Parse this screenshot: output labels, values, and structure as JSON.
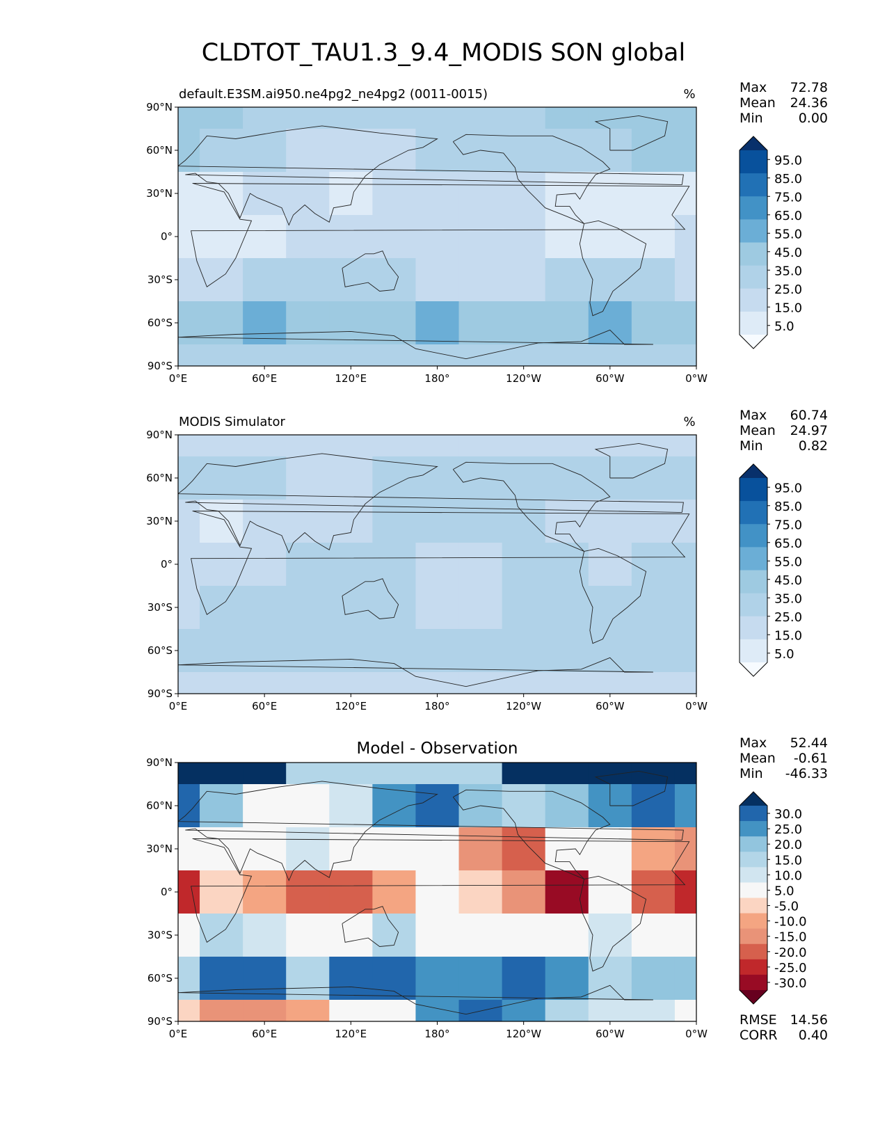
{
  "figure_title": "CLDTOT_TAU1.3_9.4_MODIS SON global",
  "colors": {
    "seq": [
      "#f7fbff",
      "#deebf7",
      "#c6dbef",
      "#b0d2e8",
      "#9ecae1",
      "#6baed6",
      "#4292c6",
      "#2171b5",
      "#08519c",
      "#08306b"
    ],
    "div": [
      "#67001f",
      "#980b24",
      "#c0282b",
      "#d6604d",
      "#e99378",
      "#f4a582",
      "#fbd5c2",
      "#f7f7f7",
      "#d1e5f0",
      "#b3d6e8",
      "#92c5de",
      "#4393c3",
      "#2166ac",
      "#053061"
    ],
    "land": "#222222",
    "ocean_default": "#dfeaf6"
  },
  "chart_data": [
    {
      "type": "heatmap",
      "panel": "test",
      "title_left": "default.E3SM.ai950.ne4pg2_ne4pg2 (0011-0015)",
      "title_center": "",
      "units": "%",
      "stats": {
        "Max": "72.78",
        "Mean": "24.36",
        "Min": "0.00"
      },
      "colorbar_labels": [
        "95.0",
        "85.0",
        "75.0",
        "65.0",
        "55.0",
        "45.0",
        "35.0",
        "25.0",
        "15.0",
        "5.0"
      ],
      "xticks": [
        "0°E",
        "60°E",
        "120°E",
        "180°",
        "120°W",
        "60°W",
        "0°W"
      ],
      "yticks": [
        "90°N",
        "60°N",
        "30°N",
        "0°",
        "30°S",
        "60°S",
        "90°S"
      ],
      "xlim": [
        0,
        360
      ],
      "ylim": [
        -90,
        90
      ],
      "field_rows": [
        {
          "lat": 90,
          "values": [
            45,
            45,
            30,
            30,
            30,
            30,
            30,
            30,
            30,
            45,
            45,
            45,
            45
          ]
        },
        {
          "lat": 60,
          "values": [
            45,
            35,
            30,
            25,
            25,
            25,
            30,
            30,
            30,
            30,
            35,
            40,
            40
          ]
        },
        {
          "lat": 30,
          "values": [
            10,
            15,
            20,
            20,
            15,
            20,
            20,
            20,
            20,
            15,
            15,
            15,
            15
          ]
        },
        {
          "lat": 0,
          "values": [
            15,
            15,
            15,
            20,
            20,
            20,
            20,
            20,
            20,
            15,
            15,
            15,
            20
          ]
        },
        {
          "lat": -30,
          "values": [
            20,
            25,
            30,
            30,
            30,
            30,
            25,
            25,
            25,
            30,
            30,
            30,
            25
          ]
        },
        {
          "lat": -60,
          "values": [
            40,
            45,
            50,
            45,
            40,
            45,
            50,
            45,
            40,
            45,
            50,
            45,
            40
          ]
        },
        {
          "lat": -90,
          "values": [
            35,
            35,
            30,
            30,
            30,
            30,
            30,
            30,
            30,
            30,
            30,
            35,
            35
          ]
        }
      ]
    },
    {
      "type": "heatmap",
      "panel": "reference",
      "title_left": "MODIS Simulator",
      "title_center": "",
      "units": "%",
      "stats": {
        "Max": "60.74",
        "Mean": "24.97",
        "Min": "0.82"
      },
      "colorbar_labels": [
        "95.0",
        "85.0",
        "75.0",
        "65.0",
        "55.0",
        "45.0",
        "35.0",
        "25.0",
        "15.0",
        "5.0"
      ],
      "xticks": [
        "0°E",
        "60°E",
        "120°E",
        "180°",
        "120°W",
        "60°W",
        "0°W"
      ],
      "yticks": [
        "90°N",
        "60°N",
        "30°N",
        "0°",
        "30°S",
        "60°S",
        "90°S"
      ],
      "xlim": [
        0,
        360
      ],
      "ylim": [
        -90,
        90
      ],
      "field_rows": [
        {
          "lat": 90,
          "values": [
            20,
            25,
            25,
            25,
            25,
            25,
            25,
            20,
            20,
            20,
            20,
            20,
            20
          ]
        },
        {
          "lat": 60,
          "values": [
            30,
            30,
            30,
            25,
            25,
            30,
            30,
            30,
            30,
            30,
            30,
            30,
            30
          ]
        },
        {
          "lat": 30,
          "values": [
            20,
            15,
            20,
            25,
            25,
            30,
            30,
            30,
            30,
            25,
            25,
            25,
            25
          ]
        },
        {
          "lat": 0,
          "values": [
            25,
            25,
            25,
            30,
            35,
            30,
            20,
            20,
            30,
            30,
            25,
            30,
            30
          ]
        },
        {
          "lat": -30,
          "values": [
            25,
            30,
            30,
            30,
            30,
            30,
            25,
            25,
            30,
            30,
            30,
            30,
            30
          ]
        },
        {
          "lat": -60,
          "values": [
            35,
            35,
            35,
            35,
            35,
            35,
            35,
            35,
            35,
            35,
            35,
            35,
            35
          ]
        },
        {
          "lat": -90,
          "values": [
            20,
            20,
            20,
            20,
            20,
            20,
            20,
            20,
            20,
            20,
            20,
            20,
            20
          ]
        }
      ]
    },
    {
      "type": "heatmap",
      "panel": "diff",
      "title_left": "",
      "title_center": "Model - Observation",
      "units": "",
      "stats": {
        "Max": "52.44",
        "Mean": "-0.61",
        "Min": "-46.33"
      },
      "extra_stats": {
        "RMSE": "14.56",
        "CORR": "0.40"
      },
      "colorbar_labels": [
        "30.0",
        "25.0",
        "20.0",
        "15.0",
        "10.0",
        "5.0",
        "-5.0",
        "-10.0",
        "-15.0",
        "-20.0",
        "-25.0",
        "-30.0"
      ],
      "xticks": [
        "0°E",
        "60°E",
        "120°E",
        "180°",
        "120°W",
        "60°W",
        "0°W"
      ],
      "yticks": [
        "90°N",
        "60°N",
        "30°N",
        "0°",
        "30°S",
        "60°S",
        "90°S"
      ],
      "xlim": [
        0,
        360
      ],
      "ylim": [
        -90,
        90
      ],
      "field_rows": [
        {
          "lat": 90,
          "values": [
            35,
            35,
            30,
            10,
            10,
            10,
            10,
            10,
            35,
            35,
            35,
            35,
            35
          ]
        },
        {
          "lat": 60,
          "values": [
            25,
            15,
            0,
            0,
            5,
            20,
            25,
            15,
            10,
            15,
            20,
            25,
            20
          ]
        },
        {
          "lat": 30,
          "values": [
            -5,
            0,
            0,
            5,
            0,
            0,
            0,
            -20,
            -25,
            0,
            0,
            -15,
            -20
          ]
        },
        {
          "lat": 0,
          "values": [
            -30,
            -10,
            -15,
            -25,
            -25,
            -15,
            0,
            -10,
            -20,
            -35,
            -5,
            -25,
            -30
          ]
        },
        {
          "lat": -30,
          "values": [
            0,
            10,
            5,
            -5,
            0,
            10,
            0,
            -5,
            0,
            0,
            5,
            0,
            0
          ]
        },
        {
          "lat": -60,
          "values": [
            10,
            25,
            25,
            10,
            25,
            25,
            20,
            20,
            25,
            20,
            10,
            15,
            15
          ]
        },
        {
          "lat": -90,
          "values": [
            -10,
            -20,
            -20,
            -15,
            -5,
            0,
            20,
            25,
            20,
            10,
            5,
            5,
            0
          ]
        }
      ]
    }
  ]
}
